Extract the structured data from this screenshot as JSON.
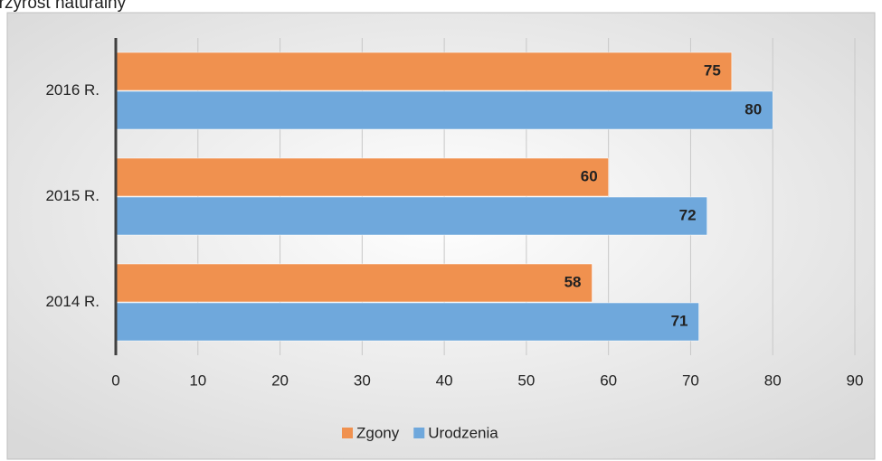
{
  "chart_data": {
    "type": "bar",
    "orientation": "horizontal",
    "title": "Przyrost naturalny",
    "categories": [
      "2014 R.",
      "2015 R.",
      "2016 R."
    ],
    "series": [
      {
        "name": "Zgony",
        "color": "#f0914f",
        "values": [
          58,
          60,
          75
        ]
      },
      {
        "name": "Urodzenia",
        "color": "#6fa8dc",
        "values": [
          71,
          72,
          80
        ]
      }
    ],
    "xlim": [
      0,
      90
    ],
    "xticks": [
      0,
      10,
      20,
      30,
      40,
      50,
      60,
      70,
      80,
      90
    ],
    "grid": true,
    "legend": "bottom"
  }
}
